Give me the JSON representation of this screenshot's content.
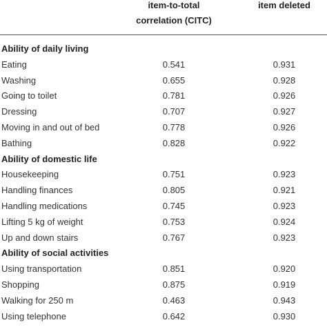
{
  "header": {
    "citc": [
      "item-to-total",
      "correlation (CITC)"
    ],
    "alpha": "item deleted"
  },
  "sections": [
    {
      "title": "Ability of daily living",
      "rows": [
        [
          "Eating",
          "0.541",
          "0.931"
        ],
        [
          "Washing",
          "0.655",
          "0.928"
        ],
        [
          "Going to toilet",
          "0.781",
          "0.926"
        ],
        [
          "Dressing",
          "0.707",
          "0.927"
        ],
        [
          "Moving in and out of bed",
          "0.778",
          "0.926"
        ],
        [
          "Bathing",
          "0.828",
          "0.922"
        ]
      ]
    },
    {
      "title": "Ability of domestic life",
      "rows": [
        [
          "Housekeeping",
          "0.751",
          "0.923"
        ],
        [
          "Handling finances",
          "0.805",
          "0.921"
        ],
        [
          "Handling medications",
          "0.745",
          "0.923"
        ],
        [
          "Lifting 5 kg of weight",
          "0.753",
          "0.924"
        ],
        [
          "Up and down stairs",
          "0.767",
          "0.923"
        ]
      ]
    },
    {
      "title": "Ability of social activities",
      "rows": [
        [
          "Using transportation",
          "0.851",
          "0.920"
        ],
        [
          "Shopping",
          "0.875",
          "0.919"
        ],
        [
          "Walking for 250 m",
          "0.463",
          "0.943"
        ],
        [
          "Using telephone",
          "0.642",
          "0.930"
        ]
      ]
    }
  ]
}
